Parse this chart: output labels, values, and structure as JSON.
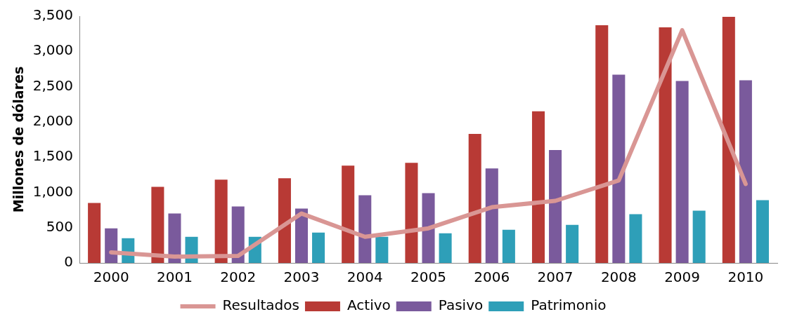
{
  "chart_data": {
    "type": "bar",
    "ylabel": "Millones de dólares",
    "categories": [
      "2000",
      "2001",
      "2002",
      "2003",
      "2004",
      "2005",
      "2006",
      "2007",
      "2008",
      "2009",
      "2010"
    ],
    "series": [
      {
        "name": "Activo",
        "color": "#b83a35",
        "values": [
          850,
          1080,
          1180,
          1200,
          1380,
          1420,
          1830,
          2150,
          3370,
          3340,
          3490
        ]
      },
      {
        "name": "Pasivo",
        "color": "#7a5a9c",
        "values": [
          490,
          700,
          800,
          770,
          960,
          990,
          1340,
          1600,
          2670,
          2580,
          2590
        ]
      },
      {
        "name": "Patrimonio",
        "color": "#2e9fb8",
        "values": [
          350,
          370,
          370,
          430,
          370,
          420,
          470,
          540,
          690,
          740,
          890
        ]
      },
      {
        "name": "Resultados",
        "type": "line",
        "color": "#d99694",
        "values": [
          150,
          90,
          100,
          700,
          370,
          490,
          790,
          880,
          1170,
          3300,
          1120
        ]
      }
    ],
    "ylim": [
      0,
      3500
    ],
    "yticks": [
      0,
      500,
      {
        "value": 1000,
        "label": "1,000"
      },
      {
        "value": 1500,
        "label": "1,500"
      },
      {
        "value": 2000,
        "label": "2,000"
      },
      {
        "value": 2500,
        "label": "2,500"
      },
      {
        "value": 3000,
        "label": "3,000"
      },
      {
        "value": 3500,
        "label": "3,500"
      }
    ],
    "grid": false,
    "legend": "bottom",
    "marker": "none"
  }
}
